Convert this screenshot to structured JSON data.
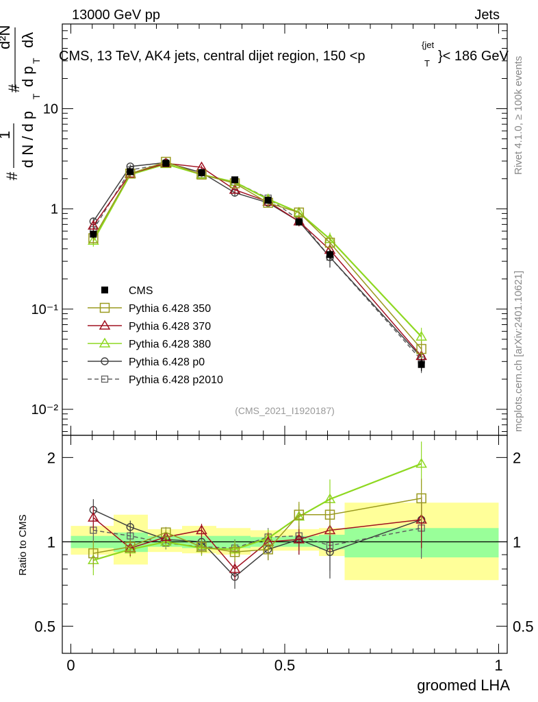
{
  "header": {
    "left": "13000 GeV pp",
    "right": "Jets",
    "plot_title": "CMS, 13 TeV, AK4 jets, central dijet region, 150 <p",
    "plot_title_sup": "{jet",
    "plot_title_sub": "T",
    "plot_title_end": "}< 186 GeV"
  },
  "side_labels": {
    "rivet": "Rivet 4.1.0, ≥ 100k events",
    "mcplots": "mcplots.cern.ch [arXiv:2401.10621]"
  },
  "watermark": "(CMS_2021_I1920187)",
  "ylabel_main": {
    "hash1": "#",
    "one": "1",
    "dN_over": "d N / d p",
    "T1": "T",
    "hash2": "#",
    "d2N": "d²N",
    "dpT": "d p",
    "T2": "T",
    "dlambda": "dλ"
  },
  "ylabel_ratio": "Ratio to CMS",
  "xlabel": "groomed LHA",
  "colors": {
    "data": "#000000",
    "p350": "#9a9a1f",
    "p370": "#a01020",
    "p380": "#8ed820",
    "p0": "#404040",
    "p2010": "#606060",
    "band_inner": "#99ff99",
    "band_outer": "#ffff99"
  },
  "chart_data": [
    {
      "type": "line",
      "panel": "main",
      "yscale": "log",
      "xlim": [
        -0.02,
        1.02
      ],
      "ylim": [
        0.0055,
        70
      ],
      "x_ticks": [
        0,
        0.5,
        1
      ],
      "y_tick_labels": [
        "10",
        "1",
        "10⁻¹",
        "10⁻²"
      ],
      "y_tick_values": [
        10,
        1,
        0.1,
        0.01
      ],
      "x": [
        0.0526,
        0.1389,
        0.2222,
        0.3056,
        0.3833,
        0.4611,
        0.5333,
        0.6056,
        0.8194
      ],
      "x_edges": [
        0,
        0.1,
        0.18,
        0.26,
        0.34,
        0.42,
        0.5,
        0.58,
        0.64,
        1.0
      ],
      "series": [
        {
          "name": "CMS",
          "key": "data",
          "marker": "square-filled",
          "dash": false,
          "values": [
            0.56,
            2.35,
            2.85,
            2.3,
            1.95,
            1.22,
            0.74,
            0.35,
            0.028
          ],
          "err": [
            0.05,
            0.15,
            0.12,
            0.1,
            0.09,
            0.06,
            0.05,
            0.04,
            0.004
          ]
        },
        {
          "name": "Pythia 6.428 350",
          "key": "p350",
          "marker": "square-open",
          "dash": false,
          "values": [
            0.51,
            2.25,
            2.95,
            2.2,
            1.8,
            1.15,
            0.92,
            0.46,
            0.04
          ],
          "err": [
            0.06,
            0.12,
            0.12,
            0.12,
            0.12,
            0.1,
            0.1,
            0.08,
            0.008
          ]
        },
        {
          "name": "Pythia 6.428 370",
          "key": "p370",
          "marker": "triangle-open",
          "dash": false,
          "values": [
            0.68,
            2.25,
            2.85,
            2.6,
            1.55,
            1.18,
            0.75,
            0.39,
            0.034
          ],
          "err": [
            0.07,
            0.12,
            0.12,
            0.12,
            0.12,
            0.1,
            0.08,
            0.07,
            0.008
          ]
        },
        {
          "name": "Pythia 6.428 380",
          "key": "p380",
          "marker": "triangle-open",
          "dash": false,
          "values": [
            0.48,
            2.2,
            2.8,
            2.2,
            1.85,
            1.25,
            0.92,
            0.5,
            0.053
          ],
          "err": [
            0.06,
            0.12,
            0.12,
            0.12,
            0.12,
            0.1,
            0.1,
            0.08,
            0.012
          ]
        },
        {
          "name": "Pythia 6.428 p0",
          "key": "p0",
          "marker": "circle-open",
          "dash": false,
          "values": [
            0.75,
            2.65,
            2.9,
            2.3,
            1.45,
            1.15,
            0.75,
            0.33,
            0.033
          ],
          "err": [
            0.07,
            0.12,
            0.12,
            0.12,
            0.12,
            0.1,
            0.08,
            0.07,
            0.008
          ]
        },
        {
          "name": "Pythia 6.428 p2010",
          "key": "p2010",
          "marker": "square-open-small",
          "dash": true,
          "values": [
            0.62,
            2.45,
            2.8,
            2.2,
            1.85,
            1.28,
            0.78,
            0.33,
            0.031
          ],
          "err": [
            0.06,
            0.12,
            0.12,
            0.12,
            0.12,
            0.1,
            0.08,
            0.07,
            0.008
          ]
        }
      ]
    },
    {
      "type": "line",
      "panel": "ratio",
      "yscale": "log",
      "xlim": [
        -0.02,
        1.02
      ],
      "ylim": [
        0.4,
        2.4
      ],
      "y_tick_labels": [
        "0.5",
        "1",
        "2"
      ],
      "y_tick_values": [
        0.5,
        1,
        2
      ],
      "x_tick_labels": [
        "0",
        "0.5",
        "1"
      ],
      "bands": {
        "inner_low": [
          0.95,
          0.92,
          0.96,
          0.95,
          0.95,
          0.96,
          0.96,
          0.94,
          0.88
        ],
        "inner_high": [
          1.05,
          1.08,
          1.05,
          1.05,
          1.05,
          1.04,
          1.05,
          1.06,
          1.12
        ],
        "outer_low": [
          0.9,
          0.83,
          0.92,
          0.91,
          0.9,
          0.93,
          0.93,
          0.89,
          0.73
        ],
        "outer_high": [
          1.14,
          1.25,
          1.11,
          1.14,
          1.12,
          1.1,
          1.11,
          1.12,
          1.38
        ]
      },
      "series": [
        {
          "name": "Pythia 6.428 350",
          "key": "p350",
          "values": [
            0.91,
            0.96,
            1.08,
            0.96,
            0.92,
            0.94,
            1.25,
            1.25,
            1.43
          ],
          "err": [
            0.1,
            0.06,
            0.05,
            0.06,
            0.07,
            0.08,
            0.14,
            0.2,
            0.25
          ]
        },
        {
          "name": "Pythia 6.428 370",
          "key": "p370",
          "values": [
            1.22,
            0.95,
            1.04,
            1.1,
            0.8,
            1.0,
            1.02,
            1.1,
            1.2
          ],
          "err": [
            0.12,
            0.06,
            0.05,
            0.06,
            0.07,
            0.08,
            0.12,
            0.18,
            0.25
          ]
        },
        {
          "name": "Pythia 6.428 380",
          "key": "p380",
          "values": [
            0.86,
            0.94,
            1.0,
            0.95,
            0.94,
            1.03,
            1.23,
            1.42,
            1.9
          ],
          "err": [
            0.1,
            0.06,
            0.05,
            0.06,
            0.07,
            0.08,
            0.14,
            0.25,
            0.38
          ]
        },
        {
          "name": "Pythia 6.428 p0",
          "key": "p0",
          "values": [
            1.3,
            1.13,
            1.02,
            1.0,
            0.75,
            0.94,
            1.02,
            0.92,
            1.2
          ],
          "err": [
            0.12,
            0.06,
            0.05,
            0.06,
            0.07,
            0.08,
            0.12,
            0.18,
            0.25
          ]
        },
        {
          "name": "Pythia 6.428 p2010",
          "key": "p2010",
          "values": [
            1.1,
            1.05,
            0.99,
            0.96,
            0.95,
            1.04,
            1.05,
            0.97,
            1.12
          ],
          "err": [
            0.1,
            0.06,
            0.05,
            0.06,
            0.07,
            0.08,
            0.12,
            0.18,
            0.25
          ]
        }
      ]
    }
  ]
}
